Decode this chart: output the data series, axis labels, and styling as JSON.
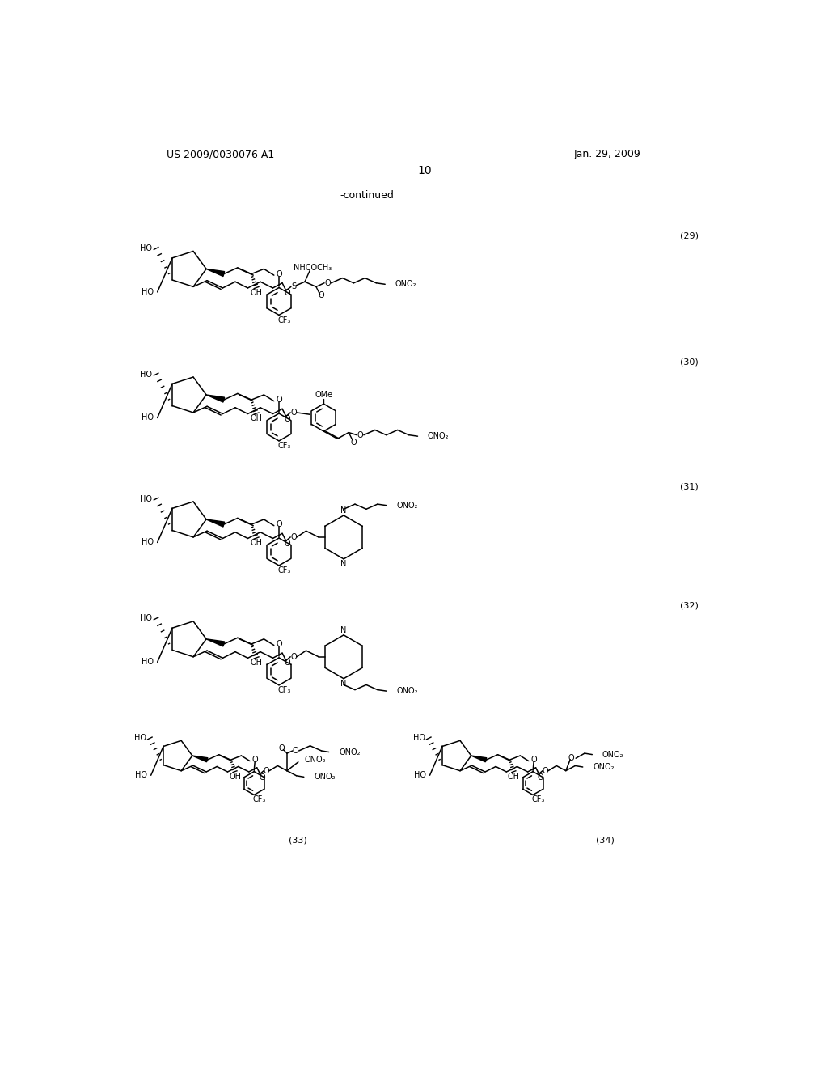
{
  "background_color": "#ffffff",
  "page_number": "10",
  "top_left_text": "US 2009/0030076 A1",
  "top_right_text": "Jan. 29, 2009",
  "continued_text": "-continued",
  "figure_width": 10.24,
  "figure_height": 13.2,
  "dpi": 100
}
